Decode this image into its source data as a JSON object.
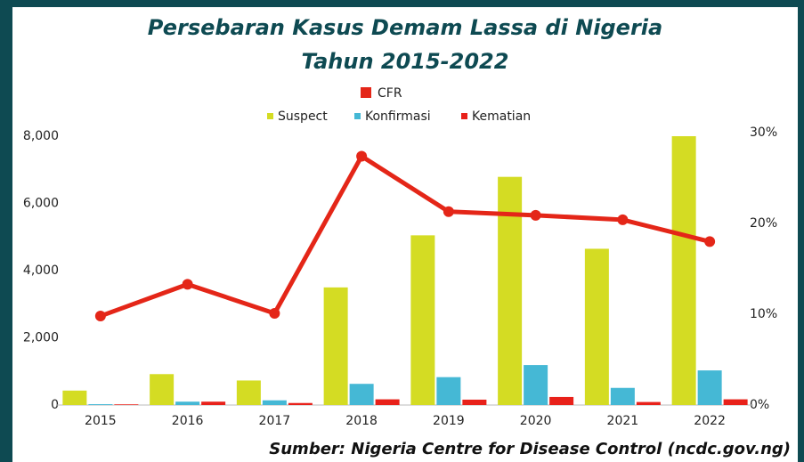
{
  "chart_data": {
    "type": "bar",
    "title": "Persebaran Kasus Demam Lassa di Nigeria",
    "subtitle": "Tahun 2015-2022",
    "source": "Sumber: Nigeria Centre for Disease Control (ncdc.gov.ng)",
    "categories": [
      "2015",
      "2016",
      "2017",
      "2018",
      "2019",
      "2020",
      "2021",
      "2022"
    ],
    "series": [
      {
        "name": "CFR",
        "type": "line",
        "axis": "y2",
        "color": "#e42618",
        "values": [
          9.8,
          13.3,
          10.1,
          27.4,
          21.3,
          20.9,
          20.4,
          18.0
        ]
      },
      {
        "name": "Suspect",
        "color": "#d4dc23",
        "values": [
          430,
          920,
          730,
          3500,
          5050,
          6790,
          4650,
          8000
        ]
      },
      {
        "name": "Konfirmasi",
        "color": "#45b8d5",
        "values": [
          25,
          100,
          140,
          630,
          830,
          1190,
          510,
          1030
        ]
      },
      {
        "name": "Kematian",
        "color": "#e8211a",
        "values": [
          20,
          100,
          60,
          170,
          160,
          240,
          90,
          170
        ]
      }
    ],
    "ylim": [
      0,
      8000
    ],
    "yticks": [
      0,
      {
        "value": 2000,
        "label": "2,000"
      },
      {
        "value": 4000,
        "label": "4,000"
      },
      {
        "value": 6000,
        "label": "6,000"
      },
      {
        "value": 8000,
        "label": "8,000"
      }
    ],
    "y2lim": [
      0,
      30
    ],
    "y2ticks": [
      {
        "value": 0,
        "label": "0%"
      },
      {
        "value": 10,
        "label": "10%"
      },
      {
        "value": 20,
        "label": "20%"
      },
      {
        "value": 30,
        "label": "30%"
      }
    ],
    "grid": false,
    "legend": "top"
  }
}
